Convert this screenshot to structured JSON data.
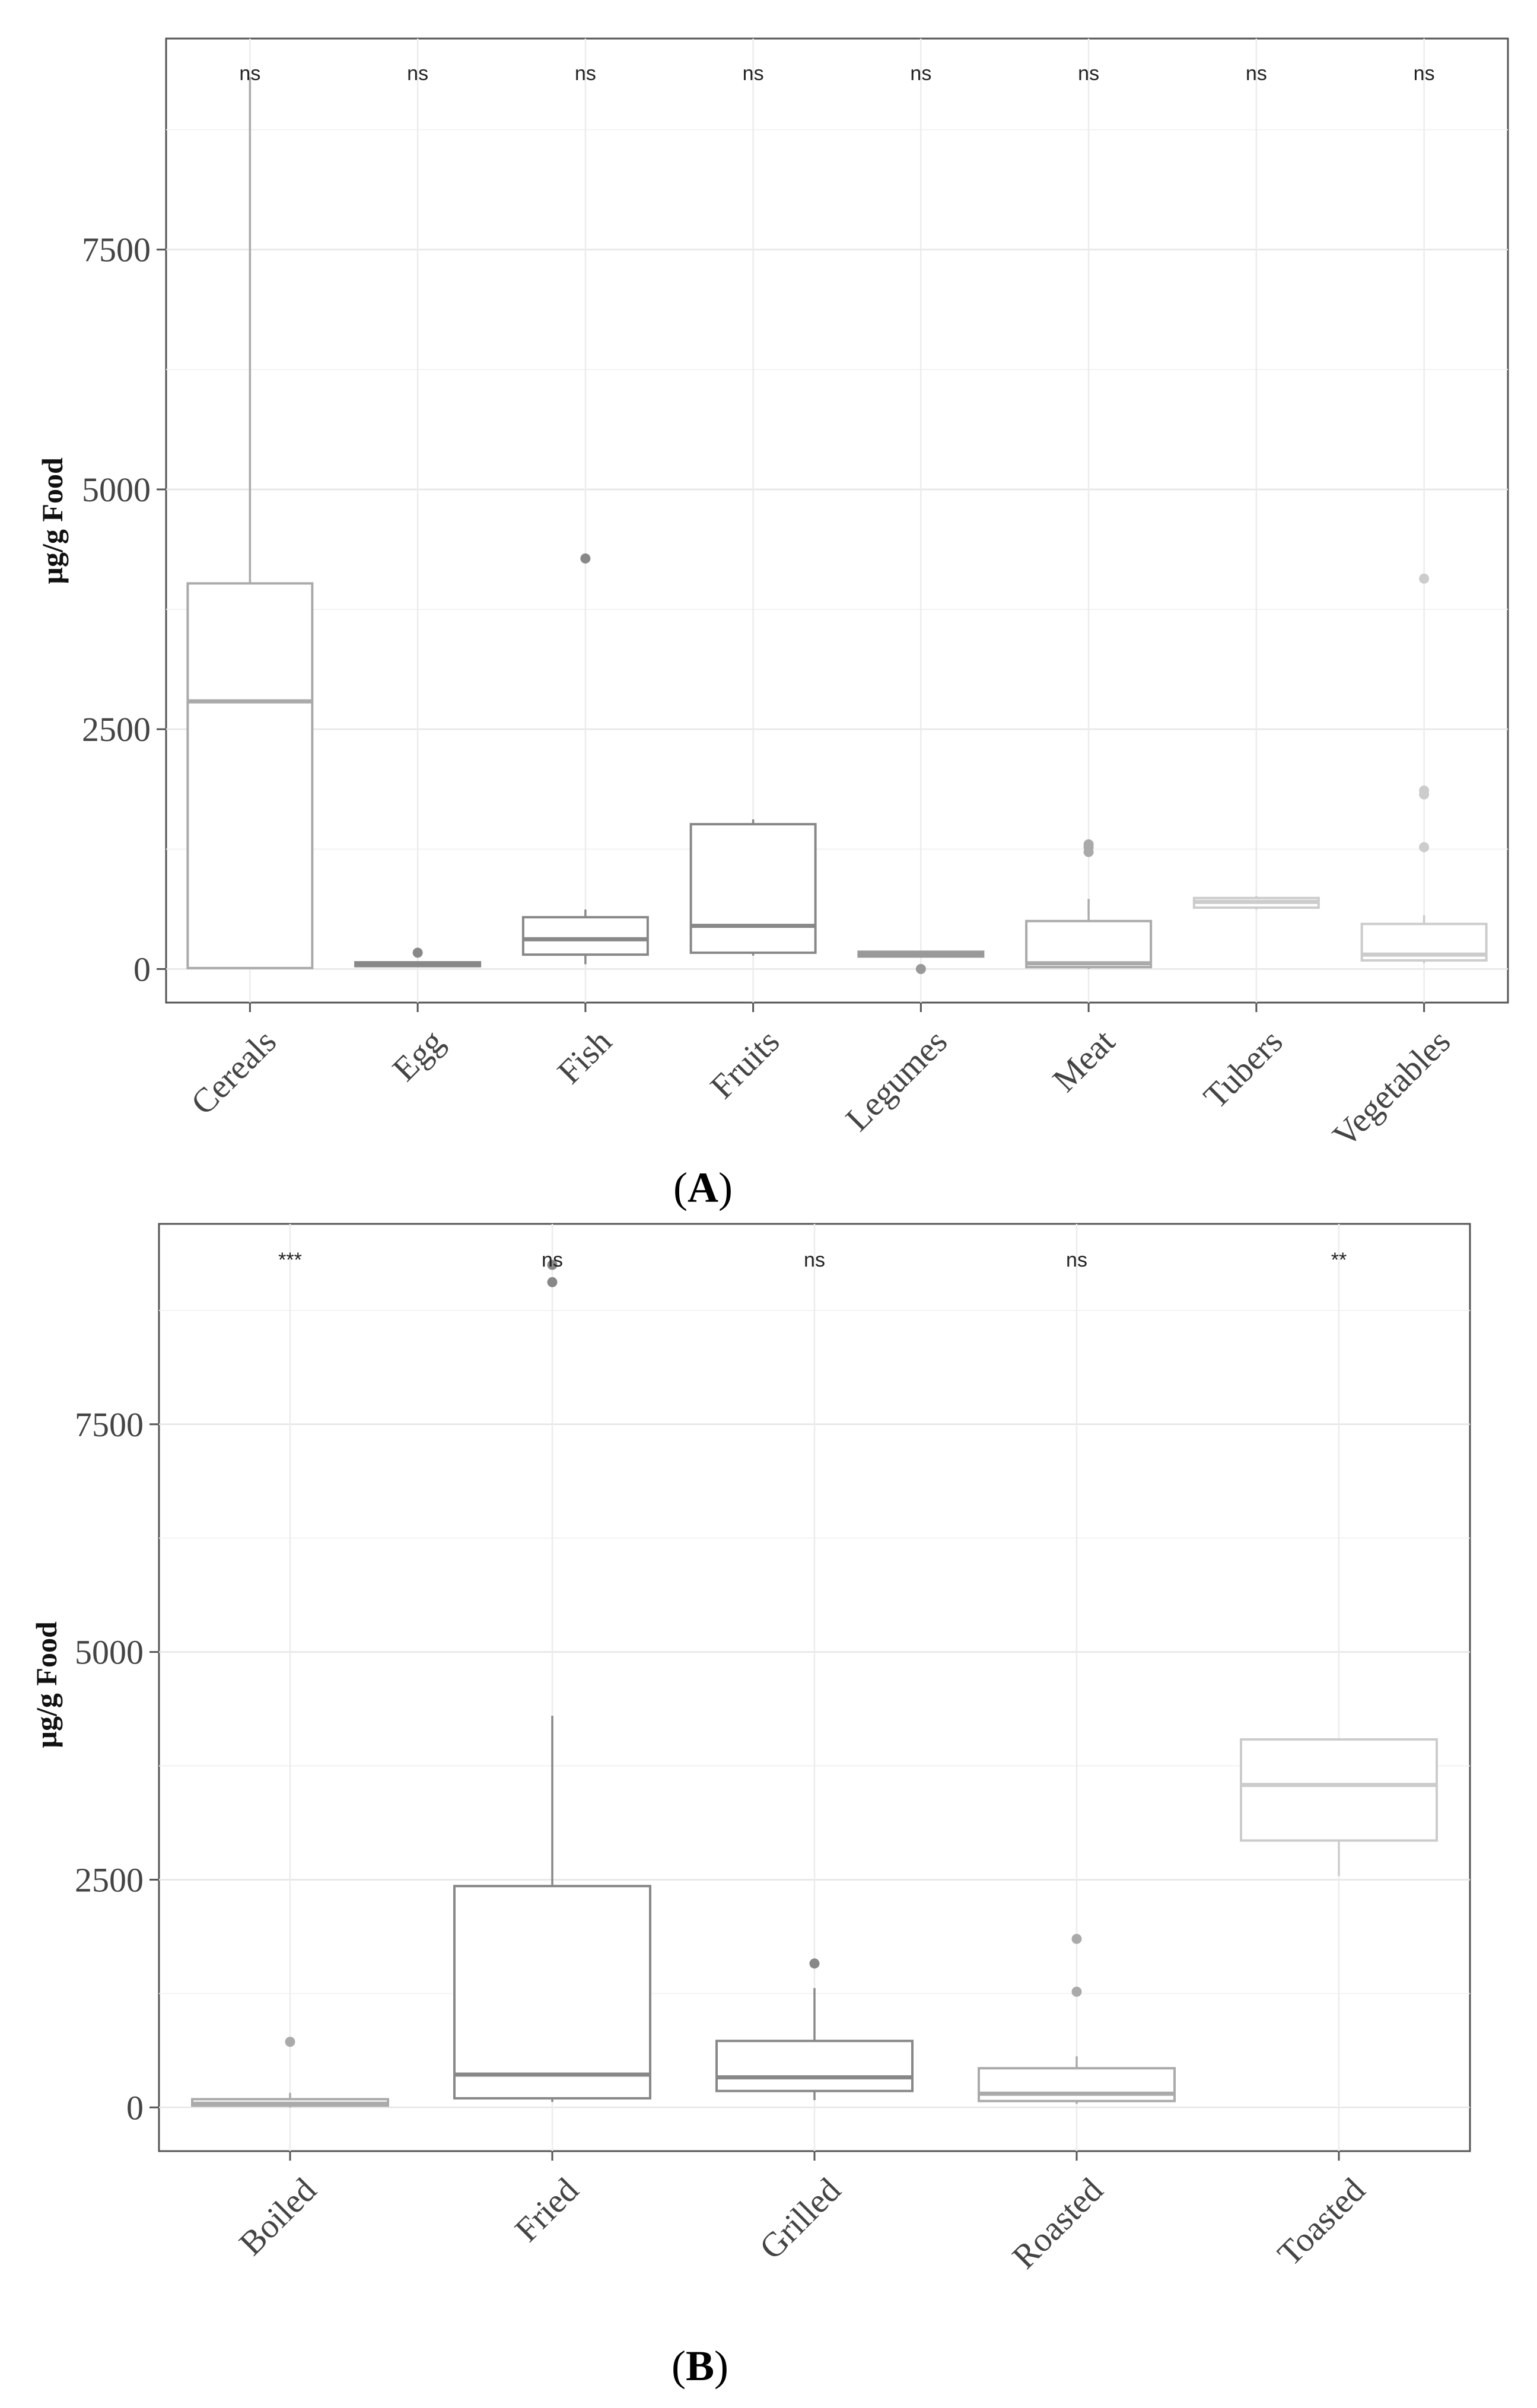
{
  "chart_data": [
    {
      "type": "box",
      "panel_label": "A",
      "title": "",
      "xlabel": "",
      "ylabel": "µg/g Food",
      "ylim": [
        -350,
        9700
      ],
      "y_ticks": [
        0,
        2500,
        5000,
        7500
      ],
      "y_tick_labels": [
        "0",
        "2500",
        "5000",
        "7500"
      ],
      "categories": [
        "Cereals",
        "Egg",
        "Fish",
        "Fruits",
        "Legumes",
        "Meat",
        "Tubers",
        "Vegetables"
      ],
      "boxes": [
        {
          "category": "Cereals",
          "min": 0,
          "q1": 10,
          "median": 2790,
          "q3": 4020,
          "max": 9300,
          "outliers": [],
          "color": "#aaaaaa",
          "significance": "ns"
        },
        {
          "category": "Egg",
          "min": 20,
          "q1": 30,
          "median": 50,
          "q3": 70,
          "max": 80,
          "outliers": [
            170
          ],
          "color": "#888888",
          "significance": "ns"
        },
        {
          "category": "Fish",
          "min": 50,
          "q1": 150,
          "median": 310,
          "q3": 540,
          "max": 620,
          "outliers": [
            4280
          ],
          "color": "#888888",
          "significance": "ns"
        },
        {
          "category": "Fruits",
          "min": 140,
          "q1": 170,
          "median": 450,
          "q3": 1510,
          "max": 1560,
          "outliers": [],
          "color": "#888888",
          "significance": "ns"
        },
        {
          "category": "Legumes",
          "min": 120,
          "q1": 130,
          "median": 160,
          "q3": 180,
          "max": 190,
          "outliers": [
            0
          ],
          "color": "#999999",
          "significance": "ns"
        },
        {
          "category": "Meat",
          "min": 0,
          "q1": 20,
          "median": 60,
          "q3": 500,
          "max": 730,
          "outliers": [
            1220,
            1270,
            1300
          ],
          "color": "#aaaaaa",
          "significance": "ns"
        },
        {
          "category": "Tubers",
          "min": 620,
          "q1": 640,
          "median": 700,
          "q3": 740,
          "max": 760,
          "outliers": [],
          "color": "#cccccc",
          "significance": "ns"
        },
        {
          "category": "Vegetables",
          "min": 60,
          "q1": 90,
          "median": 150,
          "q3": 470,
          "max": 560,
          "outliers": [
            1270,
            1820,
            1860,
            4070
          ],
          "color": "#cccccc",
          "significance": "ns"
        }
      ]
    },
    {
      "type": "box",
      "panel_label": "B",
      "title": "",
      "xlabel": "",
      "ylabel": "µg/g Food",
      "ylim": [
        -480,
        9700
      ],
      "y_ticks": [
        0,
        2500,
        5000,
        7500
      ],
      "y_tick_labels": [
        "0",
        "2500",
        "5000",
        "7500"
      ],
      "categories": [
        "Boiled",
        "Fried",
        "Grilled",
        "Roasted",
        "Toasted"
      ],
      "boxes": [
        {
          "category": "Boiled",
          "min": 0,
          "q1": 20,
          "median": 40,
          "q3": 90,
          "max": 160,
          "outliers": [
            720
          ],
          "color": "#aaaaaa",
          "significance": "***"
        },
        {
          "category": "Fried",
          "min": 60,
          "q1": 100,
          "median": 360,
          "q3": 2430,
          "max": 4300,
          "outliers": [
            9060,
            9250
          ],
          "color": "#888888",
          "significance": "ns"
        },
        {
          "category": "Grilled",
          "min": 80,
          "q1": 180,
          "median": 330,
          "q3": 730,
          "max": 1310,
          "outliers": [
            1580
          ],
          "color": "#888888",
          "significance": "ns"
        },
        {
          "category": "Roasted",
          "min": 40,
          "q1": 70,
          "median": 150,
          "q3": 430,
          "max": 560,
          "outliers": [
            1270,
            1850
          ],
          "color": "#aaaaaa",
          "significance": "ns"
        },
        {
          "category": "Toasted",
          "min": 2540,
          "q1": 2930,
          "median": 3540,
          "q3": 4040,
          "max": 4040,
          "outliers": [],
          "color": "#cccccc",
          "significance": "**"
        }
      ]
    }
  ]
}
